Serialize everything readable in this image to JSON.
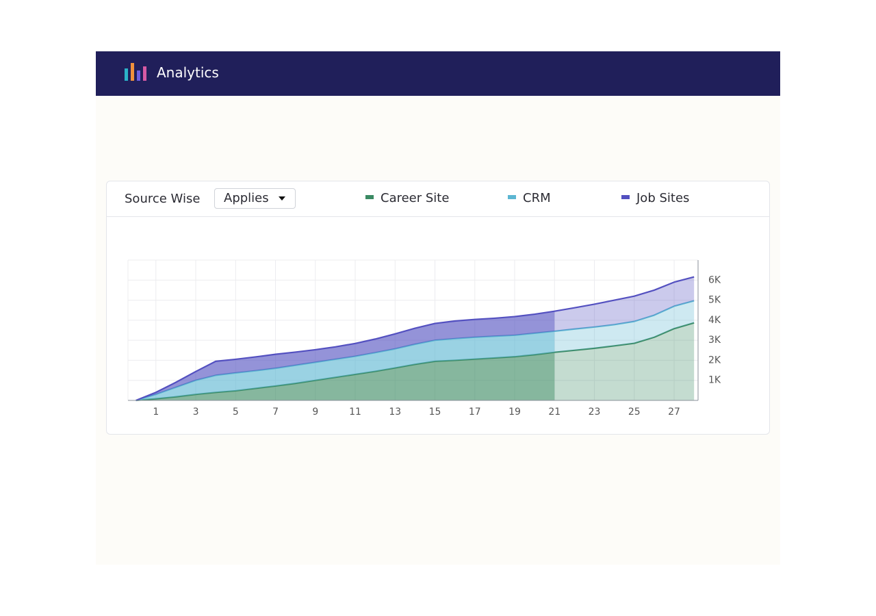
{
  "header": {
    "title": "Analytics"
  },
  "toolbar": {
    "label": "Source Wise",
    "dropdown": "Applies"
  },
  "chart_data": {
    "type": "area",
    "stacked": true,
    "x": [
      0,
      1,
      2,
      3,
      4,
      5,
      6,
      7,
      8,
      9,
      10,
      11,
      12,
      13,
      14,
      15,
      16,
      17,
      18,
      19,
      20,
      21,
      22,
      23,
      24,
      25,
      26,
      27,
      28
    ],
    "xlim": [
      -0.4,
      28.2
    ],
    "xticks": [
      1,
      3,
      5,
      7,
      9,
      11,
      13,
      15,
      17,
      19,
      21,
      23,
      25,
      27
    ],
    "ylim": [
      0,
      7000
    ],
    "yticks": [
      {
        "value": 1000,
        "label": "1K"
      },
      {
        "value": 2000,
        "label": "2K"
      },
      {
        "value": 3000,
        "label": "3K"
      },
      {
        "value": 4000,
        "label": "4K"
      },
      {
        "value": 5000,
        "label": "5K"
      },
      {
        "value": 6000,
        "label": "6K"
      }
    ],
    "grid": true,
    "projected_from": 21,
    "series": [
      {
        "name": "Career Site",
        "color": "#3b8a63",
        "values": [
          0,
          80,
          180,
          300,
          400,
          480,
          600,
          720,
          850,
          1000,
          1150,
          1300,
          1450,
          1620,
          1800,
          1950,
          2000,
          2060,
          2120,
          2180,
          2280,
          2400,
          2500,
          2600,
          2720,
          2850,
          3150,
          3580,
          3870
        ]
      },
      {
        "name": "CRM",
        "color": "#5cb6d2",
        "values": [
          0,
          220,
          470,
          700,
          850,
          890,
          880,
          880,
          900,
          900,
          900,
          900,
          930,
          950,
          1000,
          1050,
          1080,
          1090,
          1080,
          1070,
          1070,
          1050,
          1060,
          1060,
          1060,
          1090,
          1100,
          1120,
          1100
        ]
      },
      {
        "name": "Job Sites",
        "color": "#5350c0",
        "values": [
          0,
          100,
          250,
          440,
          700,
          680,
          690,
          700,
          660,
          630,
          620,
          640,
          680,
          750,
          800,
          840,
          880,
          890,
          900,
          930,
          950,
          1000,
          1060,
          1140,
          1220,
          1260,
          1250,
          1200,
          1190
        ]
      }
    ]
  }
}
